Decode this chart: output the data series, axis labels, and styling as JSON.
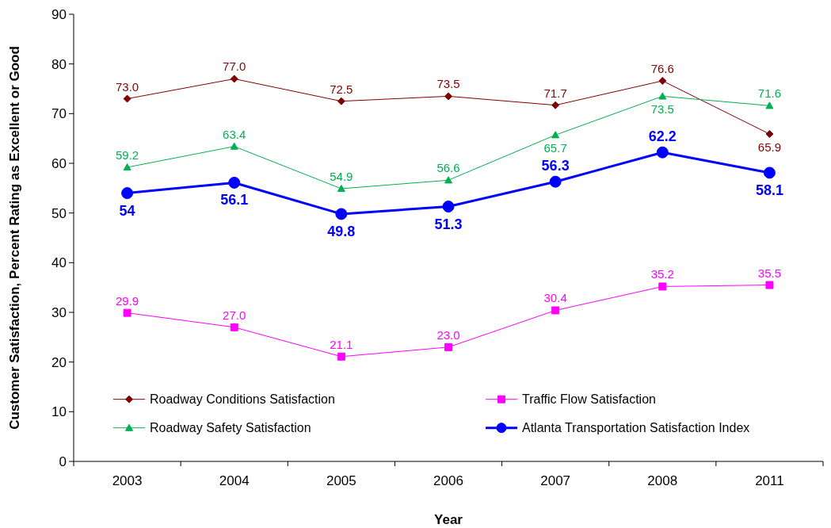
{
  "chart_data": {
    "type": "line",
    "xlabel": "Year",
    "ylabel": "Customer Satisfaction, Percent Rating as Excellent or Good",
    "categories": [
      "2003",
      "2004",
      "2005",
      "2006",
      "2007",
      "2008",
      "2011"
    ],
    "series": [
      {
        "name": "Roadway Conditions Satisfaction",
        "color": "#800000",
        "marker": "diamond",
        "values": [
          73.0,
          77.0,
          72.5,
          73.5,
          71.7,
          76.6,
          65.9
        ],
        "value_labels": [
          "73.0",
          "77.0",
          "72.5",
          "73.5",
          "71.7",
          "76.6",
          "65.9"
        ]
      },
      {
        "name": "Roadway Safety Satisfaction",
        "color": "#00b050",
        "marker": "triangle",
        "values": [
          59.2,
          63.4,
          54.9,
          56.6,
          65.7,
          73.5,
          71.6
        ],
        "value_labels": [
          "59.2",
          "63.4",
          "54.9",
          "56.6",
          "65.7",
          "73.5",
          "71.6"
        ]
      },
      {
        "name": "Traffic Flow Satisfaction",
        "color": "#ff00ff",
        "marker": "square",
        "values": [
          29.9,
          27.0,
          21.1,
          23.0,
          30.4,
          35.2,
          35.5
        ],
        "value_labels": [
          "29.9",
          "27.0",
          "21.1",
          "23.0",
          "30.4",
          "35.2",
          "35.5"
        ]
      },
      {
        "name": "Atlanta Transportation Satisfaction Index",
        "color": "#0000ff",
        "marker": "circle",
        "values": [
          54,
          56.1,
          49.8,
          51.3,
          56.3,
          62.2,
          58.1
        ],
        "value_labels": [
          "54",
          "56.1",
          "49.8",
          "51.3",
          "56.3",
          "62.2",
          "58.1"
        ]
      }
    ],
    "ylim": [
      0,
      90
    ],
    "yticks": [
      0,
      10,
      20,
      30,
      40,
      50,
      60,
      70,
      80,
      90
    ],
    "grid": false,
    "legend": "bottom",
    "line_style": "solid"
  }
}
